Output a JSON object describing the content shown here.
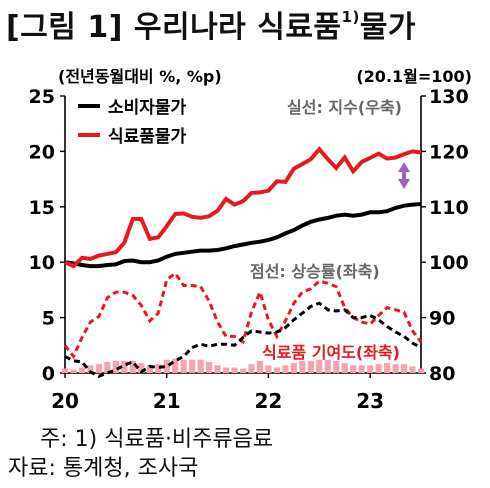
{
  "title": "[그림 1] 우리나라 식료품",
  "title_sup": "1)",
  "title_tail": "물가",
  "footnote": "주: 1) 식료품·비주류음료",
  "source": "자료: 통계청, 조사국",
  "colors": {
    "cpi": "#000000",
    "food": "#e8191e",
    "contribution": "#f5a3ad",
    "arrow": "#9c5fc4",
    "annotation": "#666666"
  },
  "chart_data": {
    "type": "line",
    "left_unit": "(전년동월대비 %, %p)",
    "right_unit": "(20.1월=100)",
    "x_ticks": [
      "20",
      "21",
      "22",
      "23"
    ],
    "x_range": [
      "2020-01",
      "2023-07"
    ],
    "ylim_left": [
      0,
      25
    ],
    "left_ticks": [
      0,
      5,
      10,
      15,
      20,
      25
    ],
    "ylim_right": [
      80,
      130
    ],
    "right_ticks": [
      80,
      90,
      100,
      110,
      120,
      130
    ],
    "legend": {
      "position": "top-left",
      "entries": [
        "소비자물가",
        "식료품물가"
      ]
    },
    "annotations": {
      "solid": "실선: 지수(우축)",
      "dotted": "점선: 상승률(좌축)",
      "bars": "식료품 기여도(좌축)"
    },
    "months": [
      "2020-01",
      "2020-02",
      "2020-03",
      "2020-04",
      "2020-05",
      "2020-06",
      "2020-07",
      "2020-08",
      "2020-09",
      "2020-10",
      "2020-11",
      "2020-12",
      "2021-01",
      "2021-02",
      "2021-03",
      "2021-04",
      "2021-05",
      "2021-06",
      "2021-07",
      "2021-08",
      "2021-09",
      "2021-10",
      "2021-11",
      "2021-12",
      "2022-01",
      "2022-02",
      "2022-03",
      "2022-04",
      "2022-05",
      "2022-06",
      "2022-07",
      "2022-08",
      "2022-09",
      "2022-10",
      "2022-11",
      "2022-12",
      "2023-01",
      "2023-02",
      "2023-03",
      "2023-04",
      "2023-05",
      "2023-06",
      "2023-07"
    ],
    "series": [
      {
        "name": "소비자물가",
        "axis": "right",
        "style": "solid",
        "values": [
          100,
          99.8,
          99.5,
          99.3,
          99.3,
          99.5,
          99.6,
          100.2,
          100.3,
          100.0,
          100.0,
          100.3,
          101.0,
          101.5,
          101.7,
          101.9,
          102.1,
          102.1,
          102.2,
          102.5,
          102.9,
          103.2,
          103.5,
          103.7,
          104.0,
          104.5,
          105.2,
          105.8,
          106.6,
          107.3,
          107.7,
          108.0,
          108.4,
          108.6,
          108.4,
          108.6,
          109.0,
          109.0,
          109.2,
          109.8,
          110.2,
          110.4,
          110.5
        ]
      },
      {
        "name": "식료품물가",
        "axis": "right",
        "style": "solid",
        "values": [
          100,
          99.3,
          100.8,
          100.6,
          101.2,
          101.5,
          101.8,
          103.5,
          107.8,
          107.8,
          104.2,
          104.5,
          106.5,
          108.7,
          108.8,
          108.2,
          108.0,
          108.3,
          109.3,
          111.4,
          110.4,
          111.0,
          112.5,
          112.6,
          112.9,
          114.6,
          114.5,
          116.9,
          117.7,
          118.6,
          120.4,
          118.6,
          117.0,
          118.9,
          116.4,
          118.1,
          118.8,
          119.6,
          118.7,
          118.9,
          119.5,
          120.0,
          119.8
        ]
      },
      {
        "name": "소비자물가 상승률",
        "axis": "left",
        "style": "dotted",
        "values": [
          1.5,
          1.1,
          1.0,
          0.1,
          -0.3,
          0.0,
          0.3,
          0.7,
          1.0,
          0.1,
          0.6,
          0.5,
          0.6,
          1.1,
          1.5,
          2.3,
          2.6,
          2.4,
          2.6,
          2.6,
          2.5,
          3.2,
          3.8,
          3.7,
          3.6,
          3.7,
          4.1,
          4.8,
          5.4,
          6.0,
          6.3,
          5.7,
          5.6,
          5.7,
          5.0,
          5.0,
          5.2,
          4.8,
          4.2,
          3.7,
          3.3,
          2.7,
          2.3
        ]
      },
      {
        "name": "식료품물가 상승률",
        "axis": "left",
        "style": "dotted",
        "values": [
          2.5,
          1.5,
          3.2,
          4.6,
          5.1,
          6.8,
          7.3,
          7.3,
          7.0,
          6.1,
          4.7,
          5.4,
          8.4,
          9.0,
          7.9,
          7.9,
          7.8,
          6.5,
          4.6,
          3.3,
          3.3,
          2.8,
          5.5,
          7.3,
          4.8,
          3.3,
          4.7,
          6.3,
          7.3,
          7.6,
          8.3,
          8.1,
          7.8,
          5.9,
          5.0,
          4.6,
          4.4,
          5.2,
          5.9,
          5.7,
          5.5,
          3.8,
          2.8
        ]
      },
      {
        "name": "식료품 기여도",
        "axis": "left",
        "style": "bar",
        "values": [
          0.4,
          0.3,
          0.5,
          0.7,
          0.8,
          1.0,
          1.1,
          1.1,
          1.1,
          0.9,
          0.7,
          0.8,
          1.2,
          1.3,
          1.2,
          1.2,
          1.2,
          1.0,
          0.7,
          0.5,
          0.5,
          0.4,
          0.8,
          1.1,
          0.7,
          0.5,
          0.7,
          0.9,
          1.1,
          1.1,
          1.2,
          1.2,
          1.1,
          0.9,
          0.7,
          0.7,
          0.7,
          0.8,
          0.9,
          0.8,
          0.8,
          0.6,
          0.4
        ]
      }
    ]
  }
}
